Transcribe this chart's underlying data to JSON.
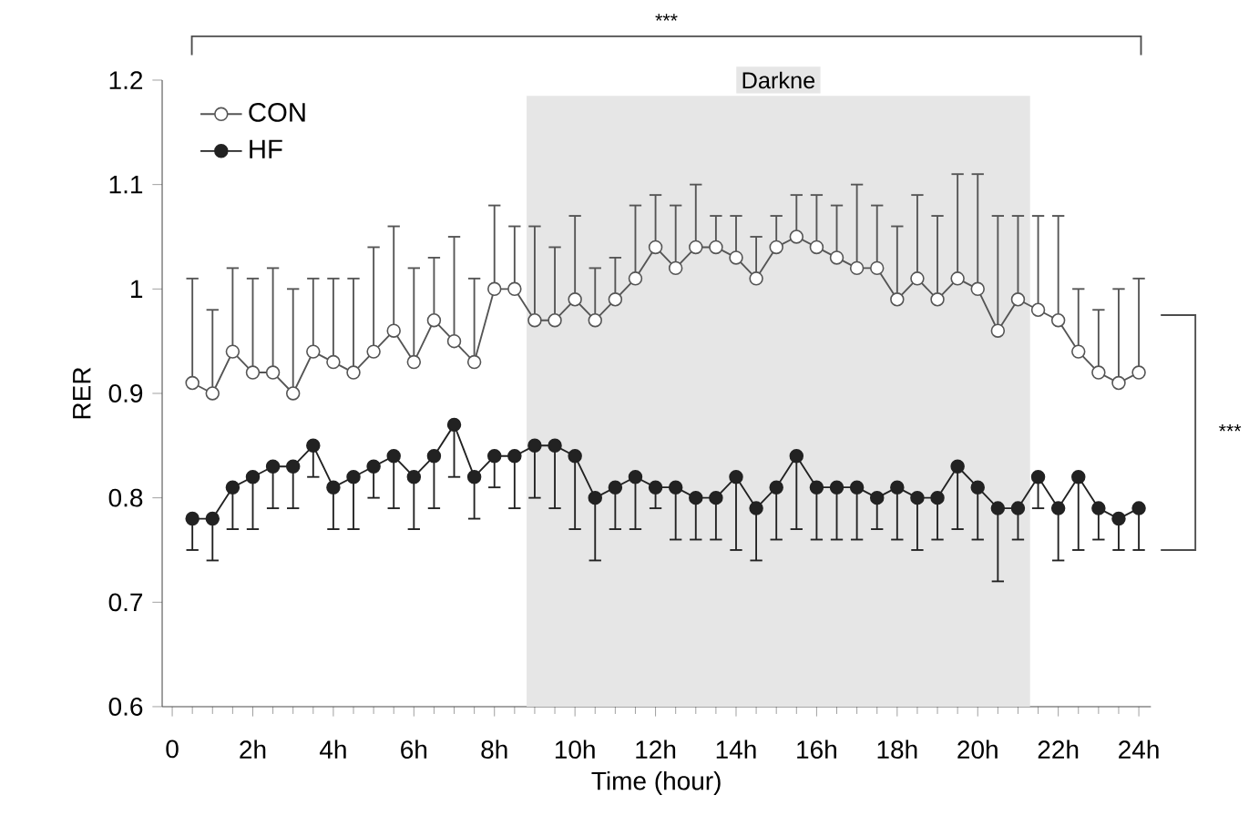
{
  "chart_data": {
    "type": "line",
    "xlabel": "Time (hour)",
    "ylabel": "RER",
    "x": [
      0.5,
      1,
      1.5,
      2,
      2.5,
      3,
      3.5,
      4,
      4.5,
      5,
      5.5,
      6,
      6.5,
      7,
      7.5,
      8,
      8.5,
      9,
      9.5,
      10,
      10.5,
      11,
      11.5,
      12,
      12.5,
      13,
      13.5,
      14,
      14.5,
      15,
      15.5,
      16,
      16.5,
      17,
      17.5,
      18,
      18.5,
      19,
      19.5,
      20,
      20.5,
      21,
      21.5,
      22,
      22.5,
      23,
      23.5,
      24
    ],
    "series": [
      {
        "name": "CON",
        "color": "#555555",
        "values": [
          0.91,
          0.9,
          0.94,
          0.92,
          0.92,
          0.9,
          0.94,
          0.93,
          0.92,
          0.94,
          0.96,
          0.93,
          0.97,
          0.95,
          0.93,
          1.0,
          1.0,
          0.97,
          0.97,
          0.99,
          0.97,
          0.99,
          1.01,
          1.04,
          1.02,
          1.04,
          1.04,
          1.03,
          1.01,
          1.04,
          1.05,
          1.04,
          1.03,
          1.02,
          1.02,
          0.99,
          1.01,
          0.99,
          1.01,
          1.0,
          0.96,
          0.99,
          0.98,
          0.97,
          0.94,
          0.92,
          0.91,
          0.92
        ],
        "errors": [
          [
            0.91,
            1.01
          ],
          [
            0.9,
            0.98
          ],
          [
            0.94,
            1.02
          ],
          [
            0.92,
            1.01
          ],
          [
            0.92,
            1.02
          ],
          [
            0.9,
            1.0
          ],
          [
            0.94,
            1.01
          ],
          [
            0.93,
            1.01
          ],
          [
            0.92,
            1.01
          ],
          [
            0.94,
            1.04
          ],
          [
            0.96,
            1.06
          ],
          [
            0.93,
            1.02
          ],
          [
            0.97,
            1.03
          ],
          [
            0.95,
            1.05
          ],
          [
            0.93,
            1.01
          ],
          [
            1.0,
            1.08
          ],
          [
            1.0,
            1.06
          ],
          [
            0.97,
            1.06
          ],
          [
            0.97,
            1.04
          ],
          [
            0.99,
            1.07
          ],
          [
            0.97,
            1.02
          ],
          [
            0.99,
            1.03
          ],
          [
            1.01,
            1.08
          ],
          [
            1.04,
            1.09
          ],
          [
            1.02,
            1.08
          ],
          [
            1.04,
            1.1
          ],
          [
            1.04,
            1.07
          ],
          [
            1.03,
            1.07
          ],
          [
            1.01,
            1.05
          ],
          [
            1.04,
            1.07
          ],
          [
            1.05,
            1.09
          ],
          [
            1.04,
            1.09
          ],
          [
            1.03,
            1.08
          ],
          [
            1.02,
            1.1
          ],
          [
            1.02,
            1.08
          ],
          [
            0.99,
            1.06
          ],
          [
            1.01,
            1.09
          ],
          [
            0.99,
            1.07
          ],
          [
            1.01,
            1.11
          ],
          [
            1.0,
            1.11
          ],
          [
            0.96,
            1.07
          ],
          [
            0.99,
            1.07
          ],
          [
            0.98,
            1.07
          ],
          [
            0.97,
            1.07
          ],
          [
            0.94,
            1.0
          ],
          [
            0.92,
            0.98
          ],
          [
            0.91,
            1.0
          ],
          [
            0.92,
            1.01
          ]
        ]
      },
      {
        "name": "HF",
        "color": "#222222",
        "values": [
          0.78,
          0.78,
          0.81,
          0.82,
          0.83,
          0.83,
          0.85,
          0.81,
          0.82,
          0.83,
          0.84,
          0.82,
          0.84,
          0.87,
          0.82,
          0.84,
          0.84,
          0.85,
          0.85,
          0.84,
          0.8,
          0.81,
          0.82,
          0.81,
          0.81,
          0.8,
          0.8,
          0.82,
          0.79,
          0.81,
          0.84,
          0.81,
          0.81,
          0.81,
          0.8,
          0.81,
          0.8,
          0.8,
          0.83,
          0.81,
          0.79,
          0.79,
          0.82,
          0.79,
          0.82,
          0.79,
          0.78,
          0.79
        ],
        "errors": [
          [
            0.75,
            0.78
          ],
          [
            0.74,
            0.78
          ],
          [
            0.77,
            0.81
          ],
          [
            0.77,
            0.82
          ],
          [
            0.79,
            0.83
          ],
          [
            0.79,
            0.83
          ],
          [
            0.82,
            0.85
          ],
          [
            0.77,
            0.81
          ],
          [
            0.77,
            0.82
          ],
          [
            0.8,
            0.83
          ],
          [
            0.79,
            0.84
          ],
          [
            0.77,
            0.82
          ],
          [
            0.79,
            0.84
          ],
          [
            0.82,
            0.87
          ],
          [
            0.78,
            0.82
          ],
          [
            0.81,
            0.84
          ],
          [
            0.79,
            0.84
          ],
          [
            0.8,
            0.85
          ],
          [
            0.79,
            0.85
          ],
          [
            0.77,
            0.84
          ],
          [
            0.74,
            0.8
          ],
          [
            0.77,
            0.81
          ],
          [
            0.77,
            0.82
          ],
          [
            0.79,
            0.81
          ],
          [
            0.76,
            0.81
          ],
          [
            0.76,
            0.8
          ],
          [
            0.76,
            0.8
          ],
          [
            0.75,
            0.82
          ],
          [
            0.74,
            0.79
          ],
          [
            0.76,
            0.81
          ],
          [
            0.77,
            0.84
          ],
          [
            0.76,
            0.81
          ],
          [
            0.76,
            0.81
          ],
          [
            0.76,
            0.81
          ],
          [
            0.77,
            0.8
          ],
          [
            0.76,
            0.81
          ],
          [
            0.75,
            0.8
          ],
          [
            0.76,
            0.8
          ],
          [
            0.77,
            0.83
          ],
          [
            0.76,
            0.81
          ],
          [
            0.72,
            0.79
          ],
          [
            0.76,
            0.79
          ],
          [
            0.79,
            0.82
          ],
          [
            0.74,
            0.79
          ],
          [
            0.75,
            0.82
          ],
          [
            0.76,
            0.79
          ],
          [
            0.75,
            0.78
          ],
          [
            0.75,
            0.79
          ]
        ]
      }
    ],
    "xlim": [
      -0.25,
      24.3
    ],
    "xticks": [
      0,
      {
        "value": 2,
        "label": "2h"
      },
      {
        "value": 4,
        "label": "4h"
      },
      {
        "value": 6,
        "label": "6h"
      },
      {
        "value": 8,
        "label": "8h"
      },
      {
        "value": 10,
        "label": "10h"
      },
      {
        "value": 12,
        "label": "12h"
      },
      {
        "value": 14,
        "label": "14h"
      },
      {
        "value": 16,
        "label": "16h"
      },
      {
        "value": 18,
        "label": "18h"
      },
      {
        "value": 20,
        "label": "20h"
      },
      {
        "value": 22,
        "label": "22h"
      },
      {
        "value": 24,
        "label": "24h"
      }
    ],
    "ylim": [
      0.6,
      1.2
    ],
    "yticks": [
      0.6,
      0.7,
      0.8,
      0.9,
      1,
      1.1,
      1.2
    ],
    "bands": [
      {
        "axis": "x",
        "from": 8.8,
        "to": 21.3,
        "label": "Darkne",
        "color": "#e6e6e6"
      }
    ],
    "annotations": [
      "***",
      "***"
    ],
    "legend": "top left",
    "marker": "circle",
    "line_style": "solid",
    "grid": false
  }
}
